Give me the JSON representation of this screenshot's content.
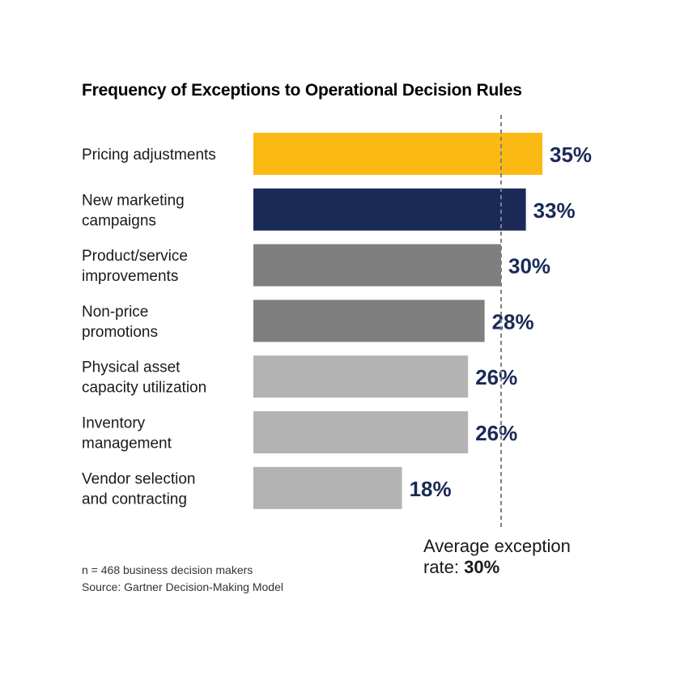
{
  "chart_data": {
    "type": "bar",
    "orientation": "horizontal",
    "title": "Frequency of Exceptions to Operational Decision Rules",
    "categories": [
      [
        "Pricing adjustments"
      ],
      [
        "New marketing",
        "campaigns"
      ],
      [
        "Product/service",
        "improvements"
      ],
      [
        "Non-price",
        "promotions"
      ],
      [
        "Physical asset",
        "capacity utilization"
      ],
      [
        "Inventory",
        "management"
      ],
      [
        "Vendor selection",
        "and contracting"
      ]
    ],
    "values": [
      35,
      33,
      30,
      28,
      26,
      26,
      18
    ],
    "value_labels": [
      "35%",
      "33%",
      "30%",
      "28%",
      "26%",
      "26%",
      "18%"
    ],
    "bar_colors": [
      "#fbb913",
      "#1a2a57",
      "#7f7f7f",
      "#7f7f7f",
      "#b3b3b3",
      "#b3b3b3",
      "#b3b3b3"
    ],
    "average": {
      "value": 30,
      "label_prefix": "Average exception",
      "label_middle": "rate:",
      "label_value": "30%"
    },
    "grid": false,
    "legend": "none"
  },
  "footnote": {
    "sample": "n = 468 business decision makers",
    "source": "Source: Gartner Decision-Making Model"
  },
  "colors": {
    "value_text": "#1a2a57",
    "average_line": "#808080"
  }
}
